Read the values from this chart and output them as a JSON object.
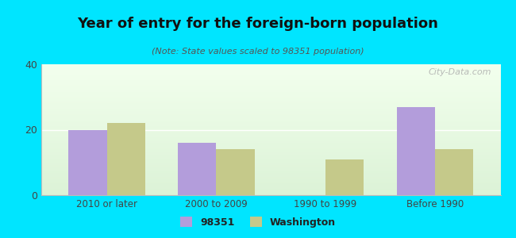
{
  "title": "Year of entry for the foreign-born population",
  "subtitle": "(Note: State values scaled to 98351 population)",
  "categories": [
    "2010 or later",
    "2000 to 2009",
    "1990 to 1999",
    "Before 1990"
  ],
  "values_98351": [
    20,
    16,
    0,
    27
  ],
  "values_washington": [
    22,
    14,
    11,
    14
  ],
  "color_98351": "#b39ddb",
  "color_washington": "#c5c98a",
  "background_outer": "#00e5ff",
  "ylim": [
    0,
    40
  ],
  "yticks": [
    0,
    20,
    40
  ],
  "bar_width": 0.35,
  "legend_label_98351": "98351",
  "legend_label_washington": "Washington",
  "watermark": "City-Data.com"
}
